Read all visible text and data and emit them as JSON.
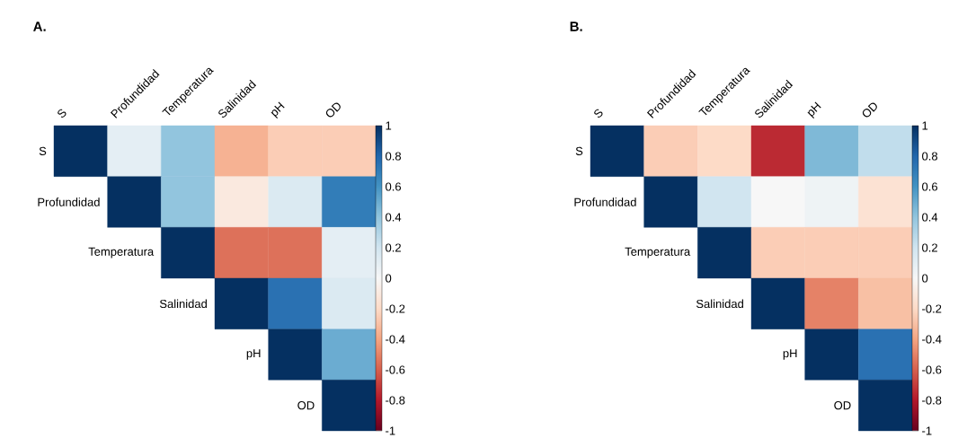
{
  "chart_data": [
    {
      "type": "heatmap",
      "title": "A.",
      "categories": [
        "S",
        "Profundidad",
        "Temperatura",
        "Salinidad",
        "pH",
        "OD"
      ],
      "y_categories": [
        "S",
        "Profundidad",
        "Temperatura",
        "Salinidad",
        "pH",
        "OD"
      ],
      "cells": [
        [
          1,
          0.1,
          0.4,
          -0.35,
          -0.25,
          -0.25
        ],
        [
          null,
          1,
          0.4,
          -0.1,
          0.15,
          0.7
        ],
        [
          null,
          null,
          1,
          -0.55,
          -0.55,
          0.1
        ],
        [
          null,
          null,
          null,
          1,
          0.75,
          0.15
        ],
        [
          null,
          null,
          null,
          null,
          1,
          0.5
        ],
        [
          null,
          null,
          null,
          null,
          null,
          1
        ]
      ],
      "clim": [
        -1,
        1
      ],
      "cticks": [
        -1,
        -0.8,
        -0.6,
        -0.4,
        -0.2,
        0,
        0.2,
        0.4,
        0.6,
        0.8,
        1
      ]
    },
    {
      "type": "heatmap",
      "title": "B.",
      "categories": [
        "S",
        "Profundidad",
        "Temperatura",
        "Salinidad",
        "pH",
        "OD"
      ],
      "y_categories": [
        "S",
        "Profundidad",
        "Temperatura",
        "Salinidad",
        "pH",
        "OD"
      ],
      "cells": [
        [
          1,
          -0.25,
          -0.2,
          -0.75,
          0.45,
          0.25
        ],
        [
          null,
          1,
          0.2,
          0,
          0.05,
          -0.15
        ],
        [
          null,
          null,
          1,
          -0.25,
          -0.25,
          -0.25
        ],
        [
          null,
          null,
          null,
          1,
          -0.5,
          -0.3
        ],
        [
          null,
          null,
          null,
          null,
          1,
          0.75
        ],
        [
          null,
          null,
          null,
          null,
          null,
          1
        ]
      ],
      "clim": [
        -1,
        1
      ],
      "cticks": [
        -1,
        -0.8,
        -0.6,
        -0.4,
        -0.2,
        0,
        0.2,
        0.4,
        0.6,
        0.8,
        1
      ]
    }
  ]
}
